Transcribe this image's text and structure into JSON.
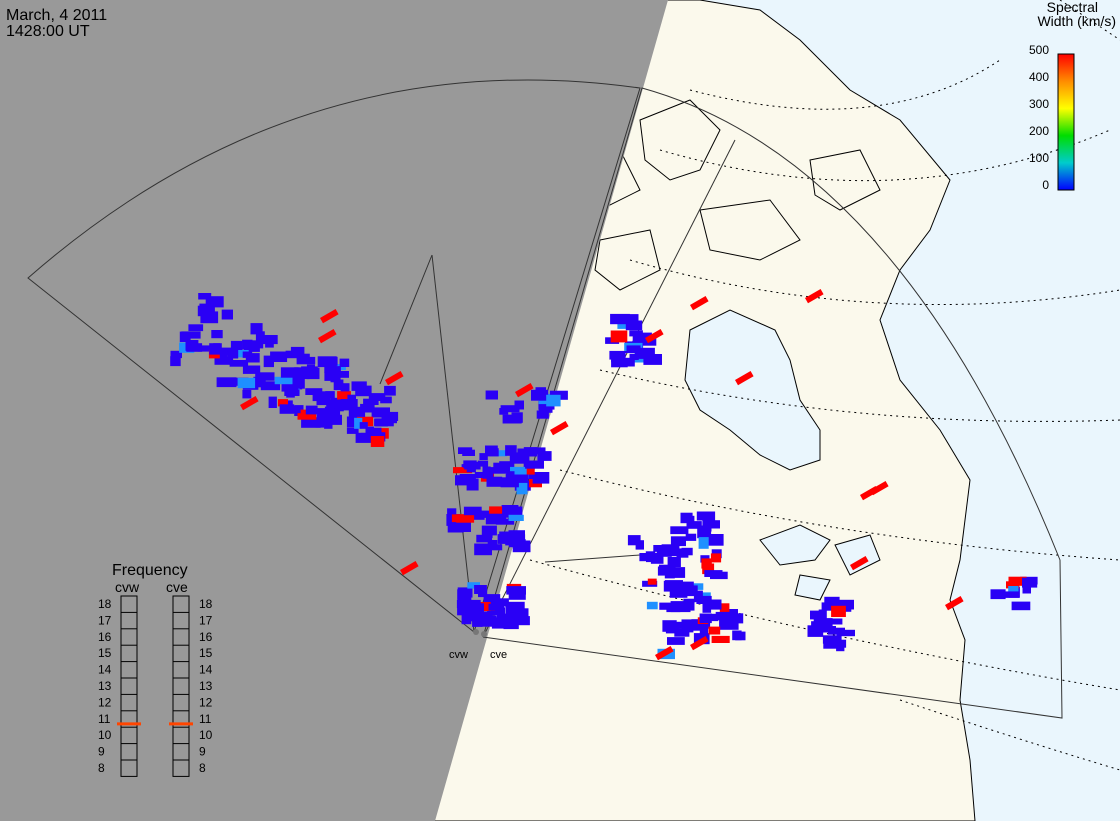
{
  "header": {
    "date": "March, 4 2011",
    "time": "1428:00 UT"
  },
  "colorbar": {
    "title_line1": "Spectral",
    "title_line2": "Width (km/s)",
    "ticks": [
      "500",
      "400",
      "300",
      "200",
      "100",
      "0"
    ],
    "stops": [
      "#ff0000",
      "#ff8c00",
      "#ffff00",
      "#00dd00",
      "#00cccc",
      "#0000ff"
    ]
  },
  "frequency": {
    "title": "Frequency",
    "radars": [
      {
        "name": "cvw",
        "value": 11
      },
      {
        "name": "cve",
        "value": 11
      }
    ],
    "levels": [
      "18",
      "17",
      "16",
      "15",
      "14",
      "13",
      "12",
      "11",
      "10",
      "9",
      "8"
    ],
    "marker_color": "#ff4500"
  },
  "radars": {
    "west_label": "cvw",
    "east_label": "cve"
  },
  "colors": {
    "night": "#999999",
    "land": "#fbf9ec",
    "ocean": "#eaf6fd",
    "echo_low": "#2a00f5",
    "echo_high": "#ff0000"
  }
}
